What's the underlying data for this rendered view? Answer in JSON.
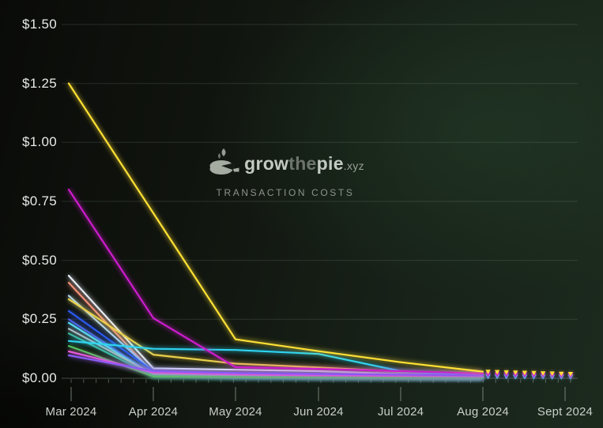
{
  "watermark": {
    "brand_grow": "grow",
    "brand_the": "the",
    "brand_pie": "pie",
    "brand_tld": ".xyz",
    "subtitle": "TRANSACTION COSTS",
    "icon": "pie-logo-icon",
    "icon_color": "#b9c0b6"
  },
  "chart_data": {
    "type": "line",
    "title": "Transaction Costs",
    "brand_watermark": "growthepie.xyz",
    "y_tick_labels": [
      "$1.50",
      "$1.25",
      "$1.00",
      "$0.75",
      "$0.50",
      "$0.25",
      "$0.00"
    ],
    "y_tick_values": [
      1.5,
      1.25,
      1.0,
      0.75,
      0.5,
      0.25,
      0
    ],
    "ylim": [
      0,
      1.5
    ],
    "x_tick_labels": [
      "Mar 2024",
      "Apr 2024",
      "May 2024",
      "Jun 2024",
      "Jul 2024",
      "Aug 2024",
      "Sept 2024"
    ],
    "grid": true,
    "legend": "none",
    "categories": [
      "Mar 2024",
      "Apr 2024",
      "May 2024",
      "Jun 2024",
      "Jul 2024",
      "Aug 2024"
    ],
    "series": [
      {
        "name": "line-pale-white",
        "color": "#E8F3FC",
        "values": [
          0.435,
          0.042,
          0.036,
          0.03,
          0.018,
          0.01
        ]
      },
      {
        "name": "line-salmon",
        "color": "#F2917A",
        "values": [
          0.405,
          0.022,
          0.012,
          0.008,
          0.006,
          0.005
        ]
      },
      {
        "name": "line-pale-sky",
        "color": "#AED4F2",
        "values": [
          0.35,
          0.028,
          0.018,
          0.012,
          0.008,
          0.006
        ]
      },
      {
        "name": "line-royal-blue",
        "color": "#2D5BF0",
        "values": [
          0.285,
          0.03,
          0.008,
          0.006,
          0.005,
          0.004
        ]
      },
      {
        "name": "line-indigo",
        "color": "#4A52E8",
        "values": [
          0.25,
          0.015,
          0.007,
          0.005,
          0.004,
          0.003
        ]
      },
      {
        "name": "line-light-cyan",
        "color": "#55D9F2",
        "values": [
          0.235,
          0.012,
          0.008,
          0.006,
          0.005,
          0.004
        ]
      },
      {
        "name": "line-lavender-gray",
        "color": "#B4BDC9",
        "values": [
          0.21,
          0.016,
          0.01,
          0.007,
          0.005,
          0.004
        ]
      },
      {
        "name": "line-teal",
        "color": "#3DB8A5",
        "values": [
          0.19,
          0.01,
          0.006,
          0.005,
          0.004,
          0.003
        ]
      },
      {
        "name": "line-green",
        "color": "#4FC85A",
        "values": [
          0.137,
          0.008,
          0.005,
          0.004,
          0.003,
          0.003
        ]
      },
      {
        "name": "line-pink",
        "color": "#EF5AD2",
        "values": [
          0.114,
          0.024,
          0.016,
          0.012,
          0.01,
          0.008
        ]
      },
      {
        "name": "line-soft-yellow",
        "color": "#E9D04B",
        "values": [
          0.335,
          0.1,
          0.062,
          0.046,
          0.028,
          0.018
        ]
      },
      {
        "name": "line-cyan",
        "color": "#2ED3F0",
        "values": [
          0.158,
          0.125,
          0.12,
          0.103,
          0.03,
          0.013
        ]
      },
      {
        "name": "line-purple",
        "color": "#8A5CF6",
        "values": [
          0.097,
          0.03,
          0.022,
          0.018,
          0.015,
          0.012
        ]
      },
      {
        "name": "line-magenta",
        "color": "#CD1DCD",
        "values": [
          0.8,
          0.255,
          0.047,
          0.04,
          0.03,
          0.02
        ]
      },
      {
        "name": "line-yellow-bright",
        "color": "#FFE135",
        "values": [
          1.25,
          0.7,
          0.165,
          0.115,
          0.068,
          0.028
        ]
      }
    ],
    "weekly_markers": {
      "note": "small dotted weekly points from Aug 2024 to mid-Sept 2024",
      "x_count": 10,
      "series": [
        {
          "name": "markers-cyan",
          "color": "#55D9F2",
          "values": [
            0.006,
            0.006,
            0.006,
            0.005,
            0.005,
            0.005,
            0.005,
            0.004,
            0.004,
            0.004
          ]
        },
        {
          "name": "markers-purple",
          "color": "#8A5CF6",
          "values": [
            0.011,
            0.011,
            0.01,
            0.01,
            0.01,
            0.009,
            0.009,
            0.009,
            0.008,
            0.008
          ]
        },
        {
          "name": "markers-magenta",
          "color": "#CD1DCD",
          "values": [
            0.018,
            0.017,
            0.017,
            0.016,
            0.016,
            0.015,
            0.015,
            0.014,
            0.014,
            0.013
          ]
        },
        {
          "name": "markers-yellow",
          "color": "#FFE135",
          "values": [
            0.027,
            0.026,
            0.025,
            0.024,
            0.023,
            0.022,
            0.021,
            0.02,
            0.019,
            0.018
          ]
        }
      ]
    }
  },
  "colors": {
    "background_left": "#0a0b09",
    "background_right": "#1c2a1e",
    "gridline": "rgba(174,206,188,0.16)",
    "axis_line": "rgba(190,210,198,0.32)",
    "tick": "rgba(160,172,160,0.45)",
    "y_label": "#e7eae6",
    "x_label": "#c9cfc8"
  }
}
